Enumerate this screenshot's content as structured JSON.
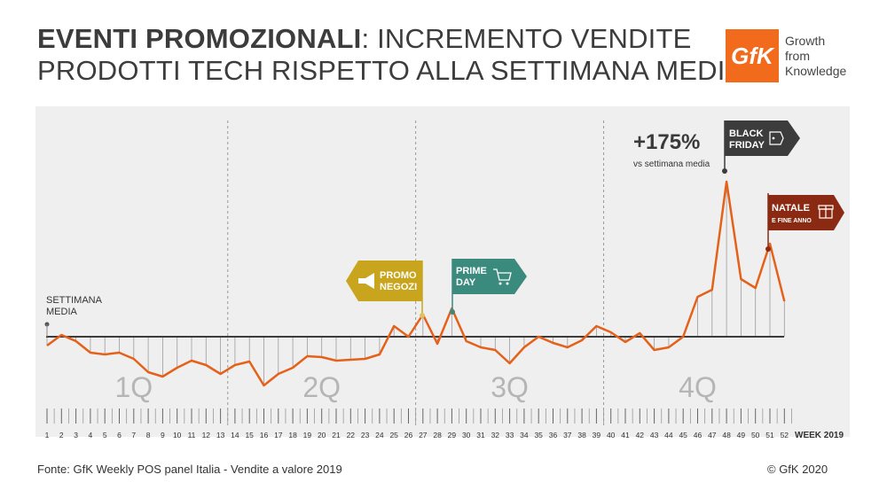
{
  "header": {
    "title_bold": "EVENTI PROMOZIONALI",
    "title_rest": ": INCREMENTO VENDITE",
    "title_line2": "PRODOTTI TECH RISPETTO ALLA SETTIMANA MEDIA"
  },
  "brand": {
    "logo_text": "GfK",
    "tagline": [
      "Growth",
      "from",
      "Knowledge"
    ],
    "color": "#f26a1b"
  },
  "footer": {
    "source": "Fonte: GfK Weekly POS panel Italia - Vendite a valore 2019",
    "copyright": "© GfK 2020"
  },
  "chart_data": {
    "type": "line",
    "xlabel": "WEEK 2019",
    "baseline_label": [
      "SETTIMANA",
      "MEDIA"
    ],
    "quarters": [
      "1Q",
      "2Q",
      "3Q",
      "4Q"
    ],
    "line_color": "#e5611a",
    "x": [
      1,
      2,
      3,
      4,
      5,
      6,
      7,
      8,
      9,
      10,
      11,
      12,
      13,
      14,
      15,
      16,
      17,
      18,
      19,
      20,
      21,
      22,
      23,
      24,
      25,
      26,
      27,
      28,
      29,
      30,
      31,
      32,
      33,
      34,
      35,
      36,
      37,
      38,
      39,
      40,
      41,
      42,
      43,
      44,
      45,
      46,
      47,
      48,
      49,
      50,
      51,
      52
    ],
    "y": [
      -10,
      2,
      -5,
      -18,
      -20,
      -18,
      -25,
      -40,
      -45,
      -35,
      -27,
      -32,
      -42,
      -32,
      -28,
      -55,
      -42,
      -35,
      -22,
      -23,
      -27,
      -26,
      -25,
      -20,
      12,
      0,
      25,
      -8,
      32,
      -5,
      -12,
      -15,
      -30,
      -12,
      0,
      -7,
      -12,
      -4,
      12,
      5,
      -6,
      4,
      -15,
      -12,
      0,
      45,
      53,
      175,
      65,
      55,
      105,
      40
    ],
    "callouts": {
      "peak_value": "+175%",
      "peak_sub": "vs settimana media",
      "black_friday": [
        "BLACK",
        "FRIDAY"
      ],
      "natale": [
        "NATALE",
        "E FINE ANNO"
      ],
      "promo_negozi": [
        "PROMO",
        "NEGOZI"
      ],
      "prime_day": [
        "PRIME",
        "DAY"
      ]
    },
    "flag_colors": {
      "black_friday": "#3c3c3c",
      "natale": "#8b2a12",
      "promo_negozi": "#c8a51c",
      "prime_day": "#3b8a7e"
    }
  }
}
